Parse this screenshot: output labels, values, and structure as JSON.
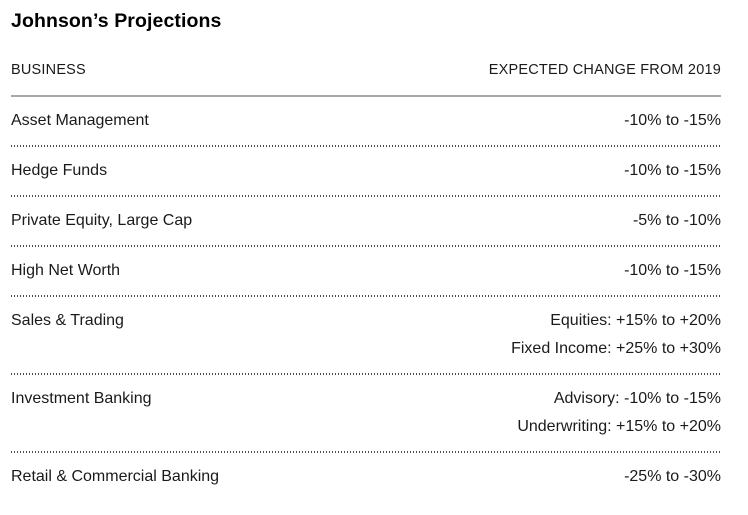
{
  "title": "Johnson’s Projections",
  "table": {
    "headers": {
      "business": "BUSINESS",
      "change": "EXPECTED CHANGE FROM 2019"
    },
    "rows": [
      {
        "business": "Asset Management",
        "changes": [
          "-10% to -15%"
        ]
      },
      {
        "business": "Hedge Funds",
        "changes": [
          "-10% to -15%"
        ]
      },
      {
        "business": "Private Equity, Large Cap",
        "changes": [
          "-5% to -10%"
        ]
      },
      {
        "business": "High Net Worth",
        "changes": [
          "-10% to -15%"
        ]
      },
      {
        "business": "Sales & Trading",
        "changes": [
          "Equities: +15% to +20%",
          "Fixed Income: +25% to +30%"
        ]
      },
      {
        "business": "Investment Banking",
        "changes": [
          "Advisory: -10% to -15%",
          "Underwriting: +15% to +20%"
        ]
      },
      {
        "business": "Retail & Commercial Banking",
        "changes": [
          "-25% to -30%"
        ]
      }
    ]
  },
  "colors": {
    "text": "#1a1a1a",
    "title_text": "#000000",
    "header_rule": "#a8a8a8",
    "row_divider": "#4a4a4a",
    "background": "#ffffff"
  },
  "chart_data": {
    "type": "table",
    "title": "Johnson’s Projections",
    "columns": [
      "BUSINESS",
      "EXPECTED CHANGE FROM 2019"
    ],
    "rows": [
      [
        "Asset Management",
        "-10% to -15%"
      ],
      [
        "Hedge Funds",
        "-10% to -15%"
      ],
      [
        "Private Equity, Large Cap",
        "-5% to -10%"
      ],
      [
        "High Net Worth",
        "-10% to -15%"
      ],
      [
        "Sales & Trading",
        "Equities: +15% to +20%; Fixed Income: +25% to +30%"
      ],
      [
        "Investment Banking",
        "Advisory: -10% to -15%; Underwriting: +15% to +20%"
      ],
      [
        "Retail & Commercial Banking",
        "-25% to -30%"
      ]
    ],
    "layout": {
      "value_alignment": "right",
      "header_rule": "solid",
      "row_dividers": "dotted",
      "grid": "horizontal-only"
    }
  }
}
